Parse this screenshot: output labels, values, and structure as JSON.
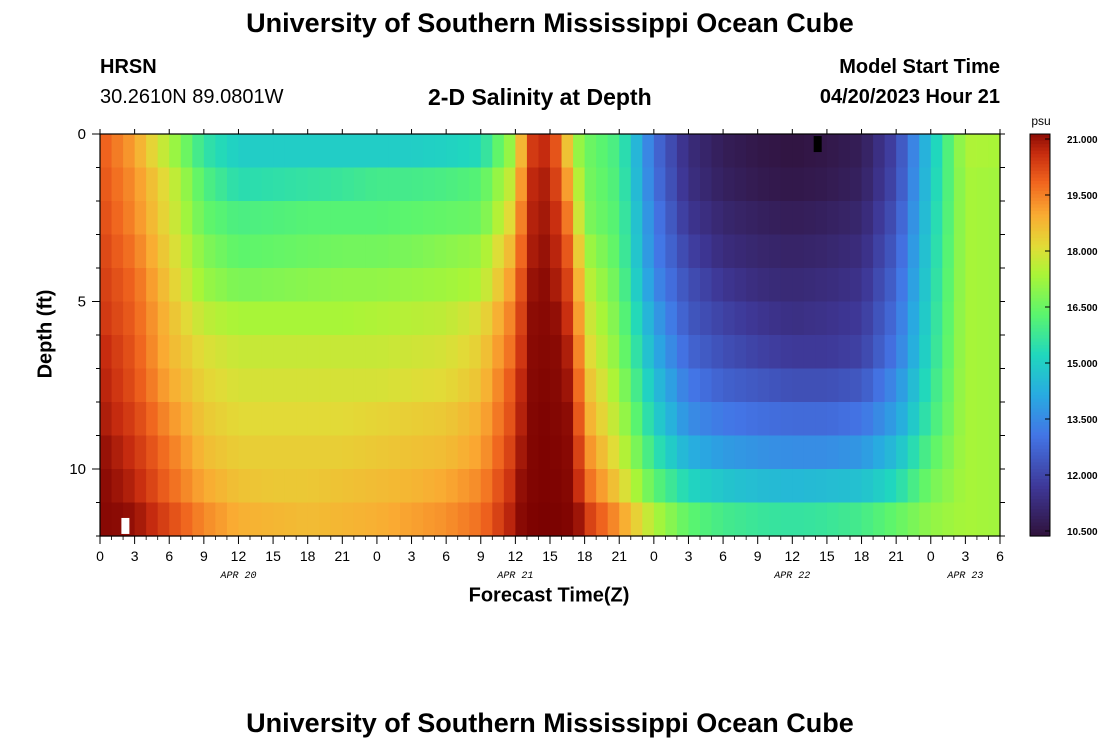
{
  "page": {
    "title": "University of Southern Mississippi Ocean Cube",
    "footer_title": "University of Southern Mississippi Ocean Cube",
    "station": "HRSN",
    "coordinates": "30.2610N  89.0801W",
    "subtitle": "2-D Salinity at Depth",
    "model_start_label": "Model Start Time",
    "model_start_value": "04/20/2023 Hour 21"
  },
  "chart_data": {
    "type": "heatmap",
    "title": "2-D Salinity at Depth",
    "xlabel": "Forecast Time(Z)",
    "ylabel": "Depth (ft)",
    "x_range_hours": [
      0,
      78
    ],
    "y_range_ft": [
      0,
      12
    ],
    "y_inverted": true,
    "x_ticks": [
      "0",
      "3",
      "6",
      "9",
      "12",
      "15",
      "18",
      "21",
      "0",
      "3",
      "6",
      "9",
      "12",
      "15",
      "18",
      "21",
      "0",
      "3",
      "6",
      "9",
      "12",
      "15",
      "18",
      "21",
      "0",
      "3",
      "6"
    ],
    "y_ticks": [
      {
        "value": 0,
        "label": "0"
      },
      {
        "value": 5,
        "label": "5"
      },
      {
        "value": 10,
        "label": "10"
      }
    ],
    "day_labels": [
      {
        "hour": 12,
        "label": "APR 20"
      },
      {
        "hour": 36,
        "label": "APR 21"
      },
      {
        "hour": 60,
        "label": "APR 22"
      },
      {
        "hour": 75,
        "label": "APR 23"
      }
    ],
    "colorbar": {
      "unit": "psu",
      "min": 10.5,
      "max": 21.0,
      "ticks": [
        "21.000",
        "19.500",
        "18.000",
        "16.500",
        "15.000",
        "13.500",
        "12.000",
        "10.500"
      ]
    },
    "markers": [
      {
        "hour": 2.2,
        "depth_ft": 11.7,
        "color": "#ffffff"
      },
      {
        "hour": 62.2,
        "depth_ft": 0.3,
        "color": "#000000"
      }
    ],
    "depth_rows_ft": [
      0.5,
      1.5,
      2.5,
      3.5,
      4.5,
      5.5,
      6.5,
      7.5,
      8.5,
      9.5,
      10.5,
      11.5
    ],
    "time_anchors_hours": [
      0,
      3,
      6,
      9,
      12,
      15,
      18,
      21,
      24,
      27,
      30,
      33,
      36,
      37,
      38,
      39,
      40,
      41,
      42,
      45,
      48,
      51,
      54,
      57,
      60,
      63,
      66,
      69,
      72,
      75,
      78
    ],
    "salinity_psu": [
      [
        19.9,
        19.0,
        17.4,
        15.6,
        15.0,
        15.0,
        15.0,
        15.0,
        15.0,
        15.0,
        15.1,
        15.3,
        17.4,
        20.0,
        20.6,
        20.4,
        19.5,
        17.5,
        16.6,
        15.9,
        13.0,
        11.4,
        10.9,
        10.7,
        10.6,
        10.7,
        10.9,
        12.1,
        14.8,
        17.4,
        17.3
      ],
      [
        20.0,
        19.2,
        17.9,
        16.1,
        15.4,
        15.5,
        15.6,
        15.7,
        15.9,
        15.9,
        16.0,
        16.2,
        17.9,
        20.3,
        20.8,
        20.6,
        19.8,
        18.3,
        16.7,
        16.0,
        13.1,
        11.5,
        11.0,
        10.8,
        10.7,
        10.8,
        11.0,
        12.2,
        14.9,
        17.3,
        17.2
      ],
      [
        20.1,
        19.3,
        18.0,
        16.4,
        16.0,
        16.1,
        16.2,
        16.2,
        16.2,
        16.3,
        16.4,
        16.5,
        18.4,
        20.4,
        20.9,
        20.7,
        20.2,
        18.8,
        16.8,
        16.1,
        13.3,
        11.7,
        11.2,
        11.0,
        10.9,
        11.0,
        11.2,
        12.4,
        15.0,
        17.3,
        17.2
      ],
      [
        20.2,
        19.5,
        18.2,
        16.8,
        16.3,
        16.4,
        16.5,
        16.6,
        16.6,
        16.7,
        16.9,
        17.1,
        18.9,
        20.5,
        21.0,
        20.8,
        20.4,
        19.4,
        17.3,
        16.2,
        13.4,
        12.0,
        11.4,
        11.2,
        11.1,
        11.2,
        11.4,
        12.6,
        15.1,
        17.3,
        17.2
      ],
      [
        20.3,
        19.7,
        18.4,
        17.1,
        16.7,
        16.8,
        16.9,
        17.0,
        17.0,
        17.1,
        17.2,
        17.4,
        19.3,
        20.7,
        21.1,
        20.9,
        20.6,
        19.8,
        17.7,
        16.4,
        13.6,
        12.3,
        11.7,
        11.4,
        11.3,
        11.4,
        11.6,
        12.8,
        15.2,
        17.3,
        17.2
      ],
      [
        20.4,
        19.8,
        18.6,
        17.6,
        17.3,
        17.3,
        17.3,
        17.3,
        17.4,
        17.5,
        17.6,
        18.0,
        19.6,
        20.8,
        21.2,
        21.1,
        20.8,
        20.1,
        18.0,
        16.6,
        14.0,
        12.5,
        12.0,
        11.7,
        11.5,
        11.6,
        11.8,
        13.0,
        15.3,
        17.3,
        17.2
      ],
      [
        20.6,
        19.9,
        18.7,
        18.0,
        17.7,
        17.7,
        17.7,
        17.7,
        17.7,
        17.8,
        17.9,
        18.3,
        19.8,
        20.9,
        21.3,
        21.2,
        21.0,
        20.4,
        18.3,
        16.8,
        14.3,
        12.8,
        12.3,
        12.0,
        11.8,
        11.8,
        12.0,
        13.2,
        15.4,
        17.3,
        17.2
      ],
      [
        20.7,
        20.0,
        18.9,
        18.2,
        17.9,
        17.9,
        17.9,
        17.9,
        17.9,
        18.0,
        18.1,
        18.5,
        20.1,
        21.0,
        21.4,
        21.3,
        21.1,
        20.6,
        18.7,
        17.1,
        14.7,
        13.2,
        12.7,
        12.5,
        12.3,
        12.3,
        12.5,
        13.6,
        15.6,
        17.3,
        17.2
      ],
      [
        20.8,
        20.2,
        19.2,
        18.4,
        18.1,
        18.1,
        18.1,
        18.1,
        18.2,
        18.3,
        18.4,
        18.8,
        20.2,
        21.1,
        21.5,
        21.4,
        21.2,
        20.8,
        19.0,
        17.4,
        15.1,
        13.6,
        13.2,
        13.0,
        12.9,
        12.9,
        13.1,
        14.0,
        15.8,
        17.3,
        17.2
      ],
      [
        21.0,
        20.4,
        19.5,
        18.6,
        18.3,
        18.3,
        18.3,
        18.3,
        18.4,
        18.5,
        18.6,
        19.0,
        20.4,
        21.2,
        21.5,
        21.5,
        21.3,
        21.0,
        19.4,
        17.8,
        15.6,
        14.3,
        13.9,
        13.7,
        13.6,
        13.6,
        13.8,
        14.6,
        16.2,
        17.3,
        17.2
      ],
      [
        21.1,
        20.6,
        19.7,
        18.9,
        18.5,
        18.4,
        18.4,
        18.5,
        18.6,
        18.7,
        18.9,
        19.3,
        20.6,
        21.3,
        21.5,
        21.5,
        21.4,
        21.1,
        19.8,
        18.3,
        16.3,
        15.2,
        14.8,
        14.6,
        14.5,
        14.6,
        14.7,
        15.3,
        16.6,
        17.3,
        17.2
      ],
      [
        21.2,
        20.9,
        20.1,
        19.3,
        18.8,
        18.7,
        18.6,
        18.7,
        18.8,
        19.0,
        19.2,
        19.6,
        20.8,
        21.4,
        21.6,
        21.6,
        21.5,
        21.3,
        20.4,
        19.1,
        17.4,
        16.3,
        15.9,
        15.7,
        15.6,
        15.7,
        15.9,
        16.4,
        17.0,
        17.3,
        17.2
      ]
    ]
  }
}
